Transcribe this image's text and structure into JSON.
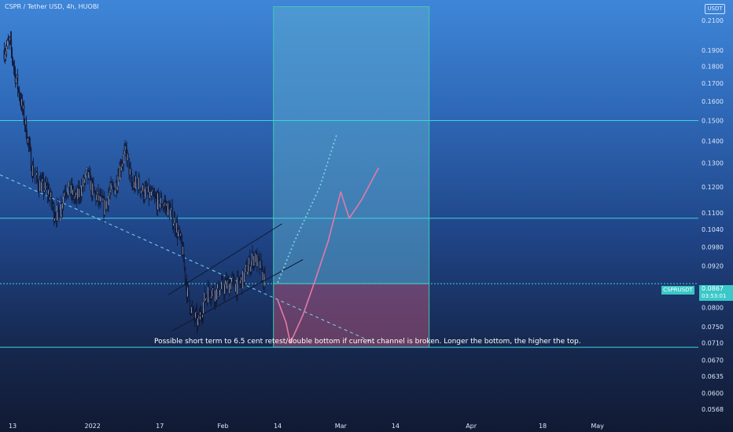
{
  "header": {
    "title": "CSPR / Tether USD, 4h, HUOBI",
    "currency_button": "USDT"
  },
  "annotation": "Possible short term to 6.5 cent retest/double bottom if current channel is broken. Longer the bottom, the higher the top.",
  "last_price": {
    "symbol": "CSPRUSDT",
    "value": "0.0867",
    "countdown": "03:53:01"
  },
  "colors": {
    "background_top": "#3f86d8",
    "background_bottom": "#111a33",
    "horizontal_levels": "#3ad4e0",
    "trendline": "#7fd6f0",
    "channel": "#0f1830",
    "profit_zone": "#5aa7cf",
    "stop_zone": "#c4577a",
    "projection_bull": "#e07aa8",
    "projection_alt": "#7ad8e8",
    "candle_body": "#e8eef8",
    "candle_wick": "#0e1530"
  },
  "chart_data": {
    "type": "candlestick",
    "symbol": "CSPR / Tether USD",
    "timeframe": "4h",
    "exchange": "HUOBI",
    "log_scale": true,
    "y_axis": {
      "ticks": [
        0.21,
        0.19,
        0.18,
        0.17,
        0.16,
        0.15,
        0.14,
        0.13,
        0.12,
        0.11,
        0.104,
        0.098,
        0.092,
        0.0867,
        0.08,
        0.075,
        0.071,
        0.067,
        0.0635,
        0.06,
        0.0568
      ],
      "tick_labels": [
        "0.2100",
        "0.1900",
        "0.1800",
        "0.1700",
        "0.1600",
        "0.1500",
        "0.1400",
        "0.1300",
        "0.1200",
        "0.1100",
        "0.1040",
        "0.0980",
        "0.0920",
        "0.0867",
        "0.0800",
        "0.0750",
        "0.0710",
        "0.0670",
        "0.0635",
        "0.0600",
        "0.0568"
      ],
      "range": [
        0.0555,
        0.225
      ]
    },
    "x_axis": {
      "tick_labels": [
        "13",
        "2022",
        "17",
        "Feb",
        "14",
        "Mar",
        "14",
        "Apr",
        "18",
        "May"
      ],
      "range": [
        "2021-12-10",
        "2022-05-25"
      ]
    },
    "close_series": {
      "start": "2021-12-11",
      "end": "2022-02-11",
      "values": [
        0.19,
        0.195,
        0.175,
        0.16,
        0.145,
        0.128,
        0.122,
        0.12,
        0.118,
        0.11,
        0.11,
        0.12,
        0.118,
        0.115,
        0.12,
        0.125,
        0.118,
        0.115,
        0.112,
        0.118,
        0.12,
        0.13,
        0.135,
        0.12,
        0.122,
        0.118,
        0.117,
        0.115,
        0.114,
        0.113,
        0.11,
        0.105,
        0.098,
        0.084,
        0.078,
        0.076,
        0.082,
        0.085,
        0.084,
        0.085,
        0.086,
        0.087,
        0.086,
        0.088,
        0.092,
        0.095,
        0.092,
        0.0867
      ]
    },
    "horizontal_levels": [
      0.15,
      0.108,
      0.0867,
      0.07
    ],
    "trendline": {
      "from": [
        "2021-12-10",
        0.125
      ],
      "to": [
        "2022-03-09",
        0.071
      ]
    },
    "channel": {
      "upper": {
        "from": [
          "2022-01-19",
          0.0835
        ],
        "to": [
          "2022-02-15",
          0.106
        ]
      },
      "lower": {
        "from": [
          "2022-01-20",
          0.074
        ],
        "to": [
          "2022-02-20",
          0.094
        ]
      }
    },
    "long_position": {
      "start": "2022-02-13",
      "end": "2022-03-22",
      "entry": 0.0867,
      "target": 0.22,
      "stop": 0.07
    },
    "projection_bull": [
      [
        "2022-02-14",
        0.082
      ],
      [
        "2022-02-16",
        0.076
      ],
      [
        "2022-02-17",
        0.071
      ],
      [
        "2022-02-20",
        0.078
      ],
      [
        "2022-02-23",
        0.088
      ],
      [
        "2022-02-26",
        0.1
      ],
      [
        "2022-03-01",
        0.118
      ],
      [
        "2022-03-03",
        0.108
      ],
      [
        "2022-03-06",
        0.115
      ],
      [
        "2022-03-10",
        0.128
      ]
    ],
    "projection_alt": [
      [
        "2022-02-14",
        0.087
      ],
      [
        "2022-02-18",
        0.1
      ],
      [
        "2022-02-24",
        0.12
      ],
      [
        "2022-02-28",
        0.143
      ]
    ]
  }
}
